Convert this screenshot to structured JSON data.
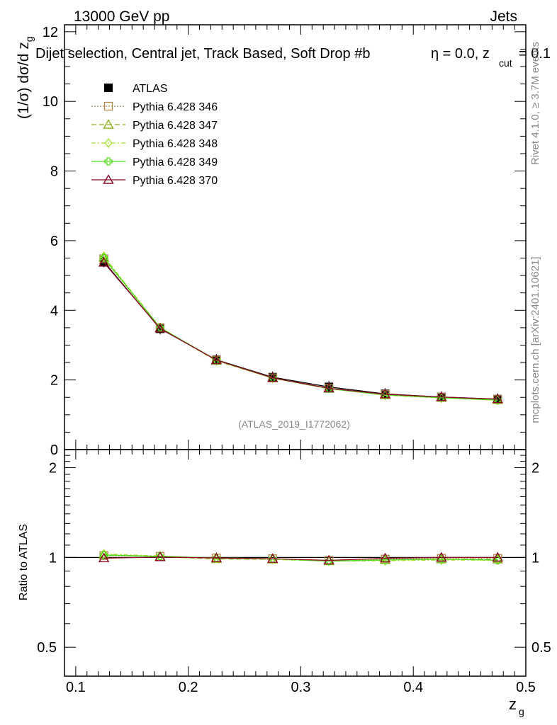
{
  "header": {
    "energy_label": "13000 GeV pp",
    "process_label": "Jets",
    "selection_title": "Dijet selection, Central jet, Track Based, Soft Drop #b",
    "param_eta": "η = 0.0, z",
    "param_cut_sub": "cut",
    "param_cut_val": " = 0.1",
    "analysis_id": "(ATLAS_2019_I1772062)"
  },
  "side_text": {
    "rivet": "Rivet 4.1.0, ≥ 3.7M events",
    "mcplots": "mcplots.cern.ch [arXiv:2401.10621]"
  },
  "colors": {
    "atlas": "#000000",
    "p346": "#b5854a",
    "p347": "#8fb020",
    "p348": "#a4e236",
    "p349": "#4fdc1a",
    "p370": "#8b0a26"
  },
  "chart_data": {
    "type": "line",
    "x": [
      0.125,
      0.175,
      0.225,
      0.275,
      0.325,
      0.375,
      0.425,
      0.475
    ],
    "main": {
      "ylabel_prefix": "(1/σ) dσ/d z",
      "ylabel_sub": "g",
      "ylim": [
        0,
        12.2
      ],
      "yticks": [
        0,
        2,
        4,
        6,
        8,
        10,
        12
      ],
      "ytick_labels": [
        "0",
        "2",
        "4",
        "6",
        "8",
        "10",
        "12"
      ]
    },
    "ratio": {
      "ylabel": "Ratio to ATLAS",
      "ylim": [
        0.4,
        2.3
      ],
      "yticks": [
        0.5,
        1,
        2
      ],
      "ytick_labels": [
        "0.5",
        "1",
        "2"
      ]
    },
    "xaxis": {
      "xlabel": "z",
      "xlabel_sub": "g",
      "xlim": [
        0.09,
        0.5
      ],
      "xticks": [
        0.1,
        0.2,
        0.3,
        0.4,
        0.5
      ],
      "xtick_labels": [
        "0.1",
        "0.2",
        "0.3",
        "0.4",
        "0.5"
      ]
    },
    "series": [
      {
        "key": "atlas",
        "name": "ATLAS",
        "marker": "square-filled",
        "dash": "",
        "values": [
          5.4,
          3.47,
          2.58,
          2.08,
          1.8,
          1.6,
          1.51,
          1.45
        ]
      },
      {
        "key": "p346",
        "name": "Pythia 6.428 346",
        "marker": "square-open",
        "dash": "2,2",
        "values": [
          5.48,
          3.5,
          2.57,
          2.06,
          1.76,
          1.58,
          1.5,
          1.44
        ]
      },
      {
        "key": "p347",
        "name": "Pythia 6.428 347",
        "marker": "triangle-open",
        "dash": "7,4",
        "values": [
          5.52,
          3.49,
          2.55,
          2.05,
          1.75,
          1.57,
          1.49,
          1.43
        ]
      },
      {
        "key": "p348",
        "name": "Pythia 6.428 348",
        "marker": "diamond-open",
        "dash": "6,3,2,3",
        "values": [
          5.55,
          3.51,
          2.56,
          2.05,
          1.75,
          1.56,
          1.48,
          1.42
        ]
      },
      {
        "key": "p349",
        "name": "Pythia 6.428 349",
        "marker": "cross-open",
        "dash": "",
        "values": [
          5.5,
          3.5,
          2.57,
          2.06,
          1.75,
          1.57,
          1.49,
          1.42
        ]
      },
      {
        "key": "p370",
        "name": "Pythia 6.428 370",
        "marker": "triangle-open",
        "dash": "",
        "values": [
          5.37,
          3.48,
          2.57,
          2.06,
          1.76,
          1.59,
          1.51,
          1.45
        ]
      }
    ]
  }
}
